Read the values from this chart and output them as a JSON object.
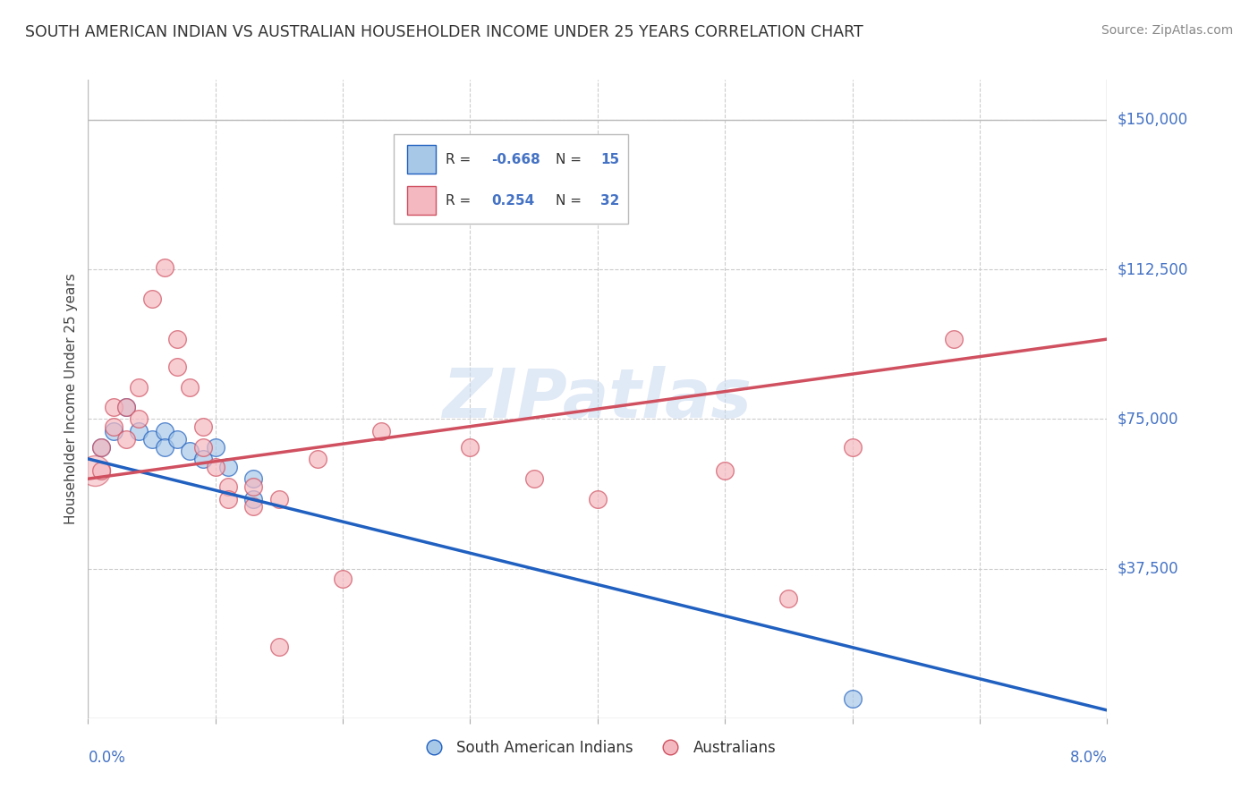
{
  "title": "SOUTH AMERICAN INDIAN VS AUSTRALIAN HOUSEHOLDER INCOME UNDER 25 YEARS CORRELATION CHART",
  "source": "Source: ZipAtlas.com",
  "ylabel": "Householder Income Under 25 years",
  "watermark": "ZIPatlas",
  "ytick_labels": [
    "$37,500",
    "$75,000",
    "$112,500",
    "$150,000"
  ],
  "ytick_values": [
    37500,
    75000,
    112500,
    150000
  ],
  "color_blue": "#a8c8e8",
  "color_pink": "#f4b8c0",
  "color_blue_line": "#2060c0",
  "color_pink_line": "#d05060",
  "color_blue_text": "#4472c4",
  "blue_scatter": [
    [
      0.001,
      68000
    ],
    [
      0.002,
      72000
    ],
    [
      0.003,
      78000
    ],
    [
      0.004,
      72000
    ],
    [
      0.005,
      70000
    ],
    [
      0.006,
      72000
    ],
    [
      0.006,
      68000
    ],
    [
      0.007,
      70000
    ],
    [
      0.008,
      67000
    ],
    [
      0.009,
      65000
    ],
    [
      0.01,
      68000
    ],
    [
      0.011,
      63000
    ],
    [
      0.013,
      60000
    ],
    [
      0.013,
      55000
    ],
    [
      0.06,
      5000
    ]
  ],
  "pink_scatter": [
    [
      0.001,
      68000
    ],
    [
      0.001,
      62000
    ],
    [
      0.002,
      78000
    ],
    [
      0.002,
      73000
    ],
    [
      0.003,
      78000
    ],
    [
      0.003,
      70000
    ],
    [
      0.004,
      83000
    ],
    [
      0.004,
      75000
    ],
    [
      0.005,
      105000
    ],
    [
      0.006,
      113000
    ],
    [
      0.007,
      95000
    ],
    [
      0.007,
      88000
    ],
    [
      0.008,
      83000
    ],
    [
      0.009,
      73000
    ],
    [
      0.009,
      68000
    ],
    [
      0.01,
      63000
    ],
    [
      0.011,
      58000
    ],
    [
      0.011,
      55000
    ],
    [
      0.013,
      58000
    ],
    [
      0.013,
      53000
    ],
    [
      0.015,
      55000
    ],
    [
      0.018,
      65000
    ],
    [
      0.023,
      72000
    ],
    [
      0.03,
      68000
    ],
    [
      0.035,
      60000
    ],
    [
      0.04,
      55000
    ],
    [
      0.05,
      62000
    ],
    [
      0.055,
      30000
    ],
    [
      0.06,
      68000
    ],
    [
      0.068,
      95000
    ],
    [
      0.015,
      18000
    ],
    [
      0.02,
      35000
    ]
  ],
  "xlim": [
    0.0,
    0.08
  ],
  "ylim": [
    0,
    160000
  ],
  "figsize": [
    14.06,
    8.92
  ],
  "dpi": 100,
  "blue_line": [
    [
      0.0,
      65000
    ],
    [
      0.08,
      2000
    ]
  ],
  "pink_line": [
    [
      0.0,
      60000
    ],
    [
      0.08,
      95000
    ]
  ]
}
